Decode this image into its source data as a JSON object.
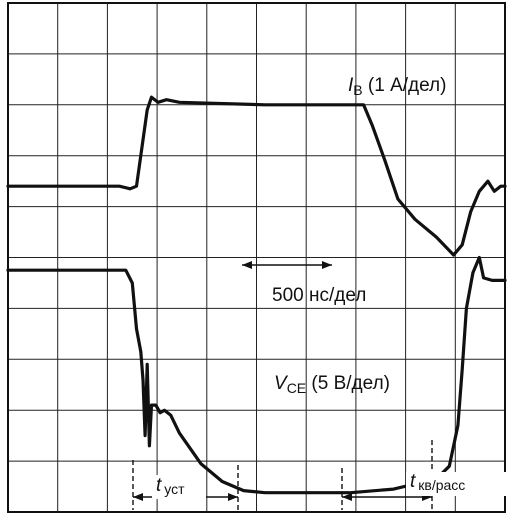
{
  "chart_data": {
    "type": "line",
    "grid": true,
    "x_divisions": 10,
    "y_divisions": 10,
    "x_unit": "500 нс/дел",
    "series": [
      {
        "name_symbol": "I",
        "name_sub": "B",
        "name_scale": " (1 А/дел)",
        "points": [
          [
            0.0,
            6.4
          ],
          [
            1.8,
            6.4
          ],
          [
            2.6,
            6.4
          ],
          [
            2.85,
            6.35
          ],
          [
            3.0,
            6.4
          ],
          [
            3.25,
            7.9
          ],
          [
            3.35,
            8.15
          ],
          [
            3.5,
            8.05
          ],
          [
            3.7,
            8.1
          ],
          [
            4.0,
            8.05
          ],
          [
            6.0,
            8.0
          ],
          [
            8.3,
            8.0
          ],
          [
            8.5,
            7.6
          ],
          [
            8.8,
            6.9
          ],
          [
            9.1,
            6.15
          ],
          [
            9.5,
            5.75
          ],
          [
            10.0,
            5.4
          ],
          [
            10.4,
            5.05
          ],
          [
            10.6,
            5.25
          ],
          [
            10.8,
            5.9
          ],
          [
            11.0,
            6.3
          ],
          [
            11.2,
            6.5
          ],
          [
            11.35,
            6.3
          ],
          [
            11.5,
            6.4
          ],
          [
            11.6,
            6.4
          ]
        ]
      },
      {
        "name_symbol": "V",
        "name_sub": "CE",
        "name_scale": " (5 В/дел)",
        "points": [
          [
            0.0,
            4.75
          ],
          [
            2.75,
            4.75
          ],
          [
            2.9,
            4.5
          ],
          [
            3.0,
            3.6
          ],
          [
            3.1,
            3.15
          ],
          [
            3.15,
            2.6
          ],
          [
            3.2,
            1.5
          ],
          [
            3.25,
            2.9
          ],
          [
            3.3,
            1.3
          ],
          [
            3.35,
            2.1
          ],
          [
            3.45,
            2.1
          ],
          [
            3.55,
            1.95
          ],
          [
            3.65,
            2.0
          ],
          [
            3.8,
            1.9
          ],
          [
            4.0,
            1.55
          ],
          [
            4.5,
            0.95
          ],
          [
            5.0,
            0.6
          ],
          [
            5.5,
            0.42
          ],
          [
            6.0,
            0.38
          ],
          [
            8.0,
            0.38
          ],
          [
            9.0,
            0.45
          ],
          [
            9.5,
            0.55
          ],
          [
            10.0,
            0.65
          ],
          [
            10.3,
            0.9
          ],
          [
            10.5,
            1.7
          ],
          [
            10.6,
            2.8
          ],
          [
            10.7,
            4.0
          ],
          [
            10.85,
            4.7
          ],
          [
            11.0,
            5.0
          ],
          [
            11.1,
            4.6
          ],
          [
            11.3,
            4.55
          ],
          [
            11.6,
            4.55
          ]
        ]
      }
    ],
    "annotations": {
      "ts_main": "t",
      "ts_sub": "уст",
      "tk_main": "t",
      "tk_sub": "кв/расс",
      "scale_label": "500 нс/дел"
    }
  }
}
